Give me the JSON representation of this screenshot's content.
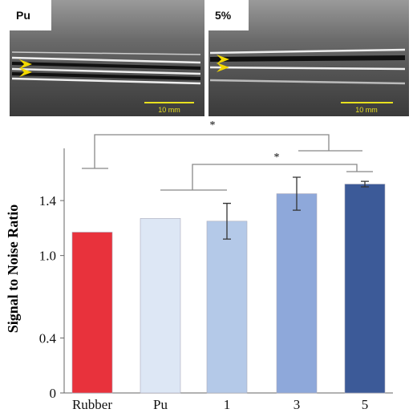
{
  "images": [
    {
      "label": "Pu",
      "scale": "10 mm"
    },
    {
      "label": "5%",
      "scale": "10 mm"
    }
  ],
  "chart_data": {
    "type": "bar",
    "y_label": "Signal to Noise Ratio",
    "categories": [
      "Rubber",
      "Pu",
      "1",
      "3",
      "5"
    ],
    "values": [
      1.17,
      1.27,
      1.25,
      1.45,
      1.52
    ],
    "errors": [
      0,
      0,
      0.13,
      0.12,
      0.02
    ],
    "colors": [
      "#e8323c",
      "#dde7f5",
      "#b4c9e8",
      "#8ea8da",
      "#3c5a98"
    ],
    "ylim": [
      0,
      1.78
    ],
    "yticks": [
      0,
      0.4,
      {
        "value": 1,
        "label": "1.0"
      },
      1.4
    ],
    "annotations": [
      "*",
      "*"
    ]
  }
}
